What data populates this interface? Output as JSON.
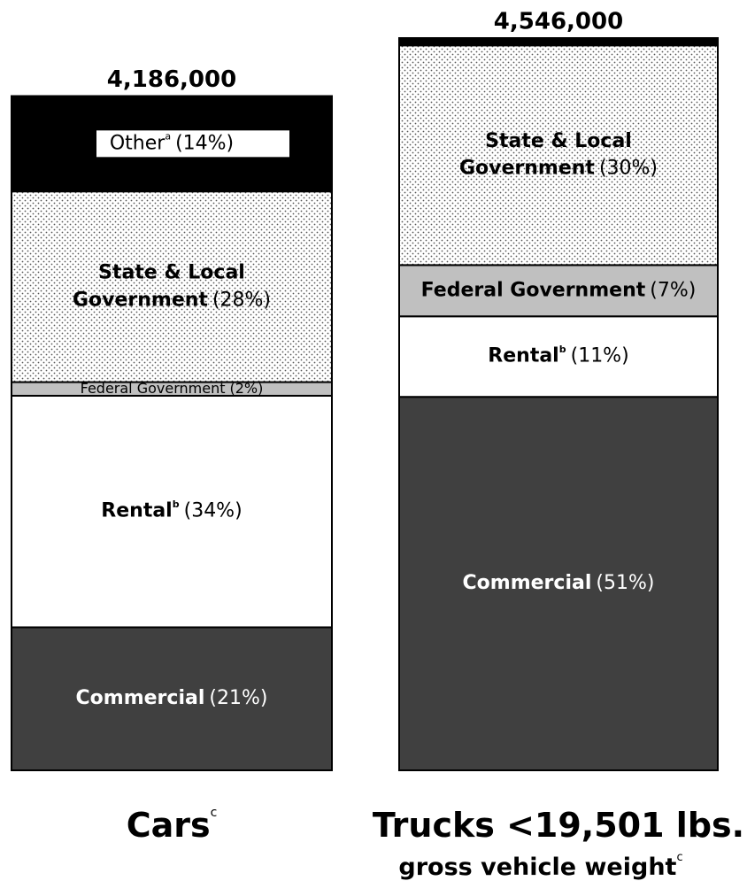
{
  "chart_data": {
    "type": "stacked_bar",
    "bars": [
      {
        "category": "Cars",
        "category_note": "c",
        "total": 4186000,
        "total_label": "4,186,000",
        "segments": [
          {
            "name": [
              "Commercial"
            ],
            "value": 21,
            "value_label": "(21%)",
            "color": "#404040",
            "label_color": "#ffffff"
          },
          {
            "name": [
              "Rental"
            ],
            "note": "b",
            "value": 34,
            "value_label": "(34%)",
            "color": "#ffffff",
            "label_color": "#000000"
          },
          {
            "name": [
              "Federal Government"
            ],
            "value": 2,
            "value_label": "(2%)",
            "color": "#c0c0c0",
            "label_color": "#000000",
            "small": true
          },
          {
            "name": [
              "State & Local",
              "Government"
            ],
            "value": 28,
            "value_label": "(28%)",
            "color": "dots",
            "label_color": "#000000"
          },
          {
            "name": [
              "Other"
            ],
            "note": "a",
            "value": 14,
            "value_label": "(14%)",
            "color": "#000000",
            "label_color": "#000000",
            "label_box": "#ffffff"
          }
        ]
      },
      {
        "category": "Trucks <19,501 lbs.",
        "subtitle": "gross vehicle weight",
        "subtitle_note": "c",
        "total": 4546000,
        "total_label": "4,546,000",
        "segments": [
          {
            "name": [
              "Commercial"
            ],
            "value": 51,
            "value_label": "(51%)",
            "color": "#404040",
            "label_color": "#ffffff"
          },
          {
            "name": [
              "Rental"
            ],
            "note": "b",
            "value": 11,
            "value_label": "(11%)",
            "color": "#ffffff",
            "label_color": "#000000"
          },
          {
            "name": [
              "Federal Government"
            ],
            "value": 7,
            "value_label": "(7%)",
            "color": "#c0c0c0",
            "label_color": "#000000"
          },
          {
            "name": [
              "State & Local",
              "Government"
            ],
            "value": 30,
            "value_label": "(30%)",
            "color": "dots",
            "label_color": "#000000"
          },
          {
            "value": 1,
            "color": "#000000"
          }
        ]
      }
    ]
  }
}
